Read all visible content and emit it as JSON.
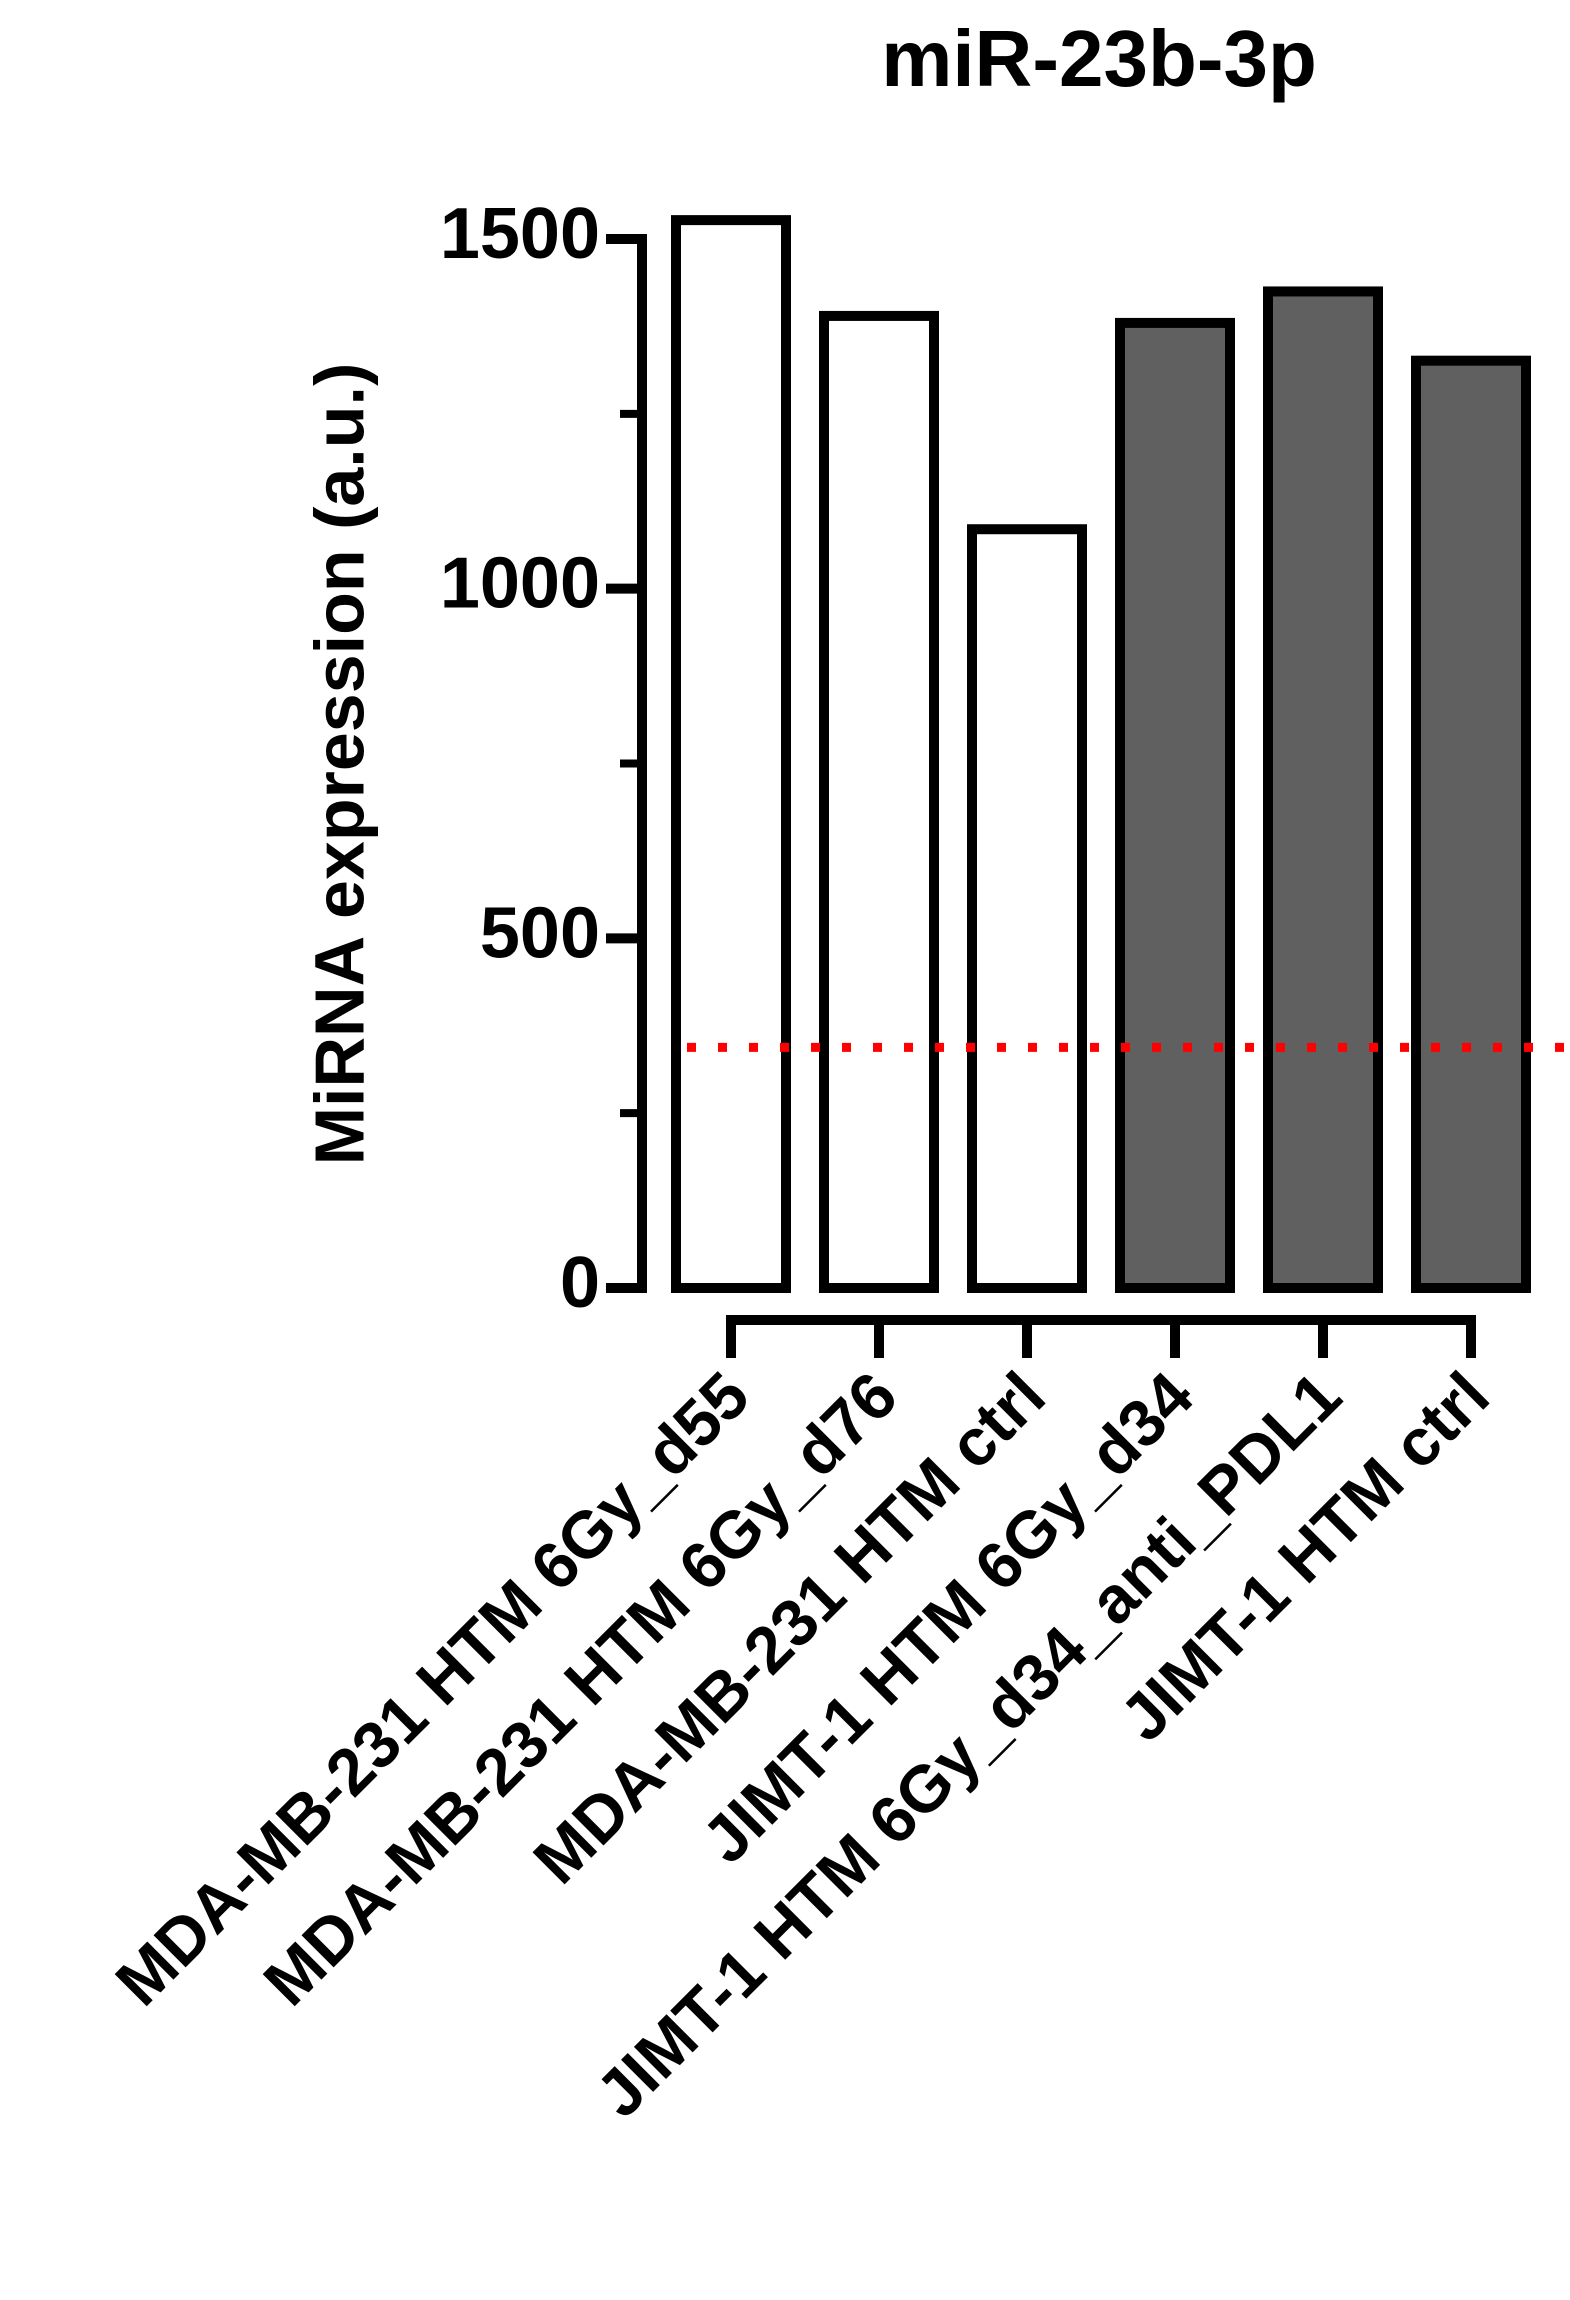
{
  "chart_data": {
    "type": "bar",
    "title": "miR-23b-3p",
    "y_label": "MiRNA expression (a.u.)",
    "categories": [
      "MDA-MB-231 HTM 6Gy_d55",
      "MDA-MB-231 HTM 6Gy_d76",
      "MDA-MB-231 HTM ctrl",
      "JIMT-1 HTM 6Gy_d34",
      "JIMT-1 HTM 6Gy_d34_anti_PDL1",
      "JIMT-1 HTM ctrl"
    ],
    "values": [
      1527,
      1390,
      1085,
      1380,
      1425,
      1326
    ],
    "colors": [
      "#ffffff",
      "#ffffff",
      "#ffffff",
      "#606060",
      "#606060",
      "#606060"
    ],
    "ylim": [
      0,
      1500
    ],
    "yticks": [
      0,
      500,
      1000,
      1500
    ],
    "minor_yticks": [
      250,
      750,
      1250
    ],
    "reference_line": {
      "value": 344,
      "color": "#ff0000"
    },
    "grid": false
  }
}
